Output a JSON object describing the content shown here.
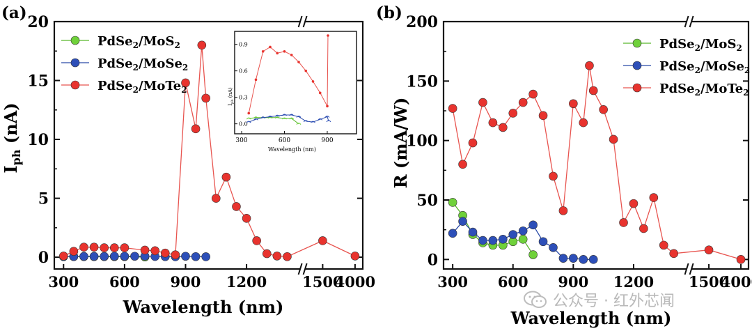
{
  "colors": {
    "green": "#6fd13a",
    "blue": "#2d4fb8",
    "red": "#e8332e",
    "red_line": "#e8544f",
    "green_line": "#59b82c",
    "blue_line": "#2a4aa8",
    "axis": "#111111"
  },
  "watermark": {
    "icon": "wechat-icon",
    "text": "公众号 · 红外芯闻"
  },
  "chart_data": [
    {
      "type": "scatter-line",
      "panel": "(a)",
      "title": "",
      "xlabel": "Wavelength (nm)",
      "ylabel": "Iph (nA)",
      "ylabel_main": "I",
      "ylabel_sub": "ph",
      "ylabel_unit": " (nA)",
      "ylim": [
        -1,
        20
      ],
      "xticks": [
        "300",
        "600",
        "900",
        "1200",
        "1500",
        "4000"
      ],
      "yticks": [
        "0",
        "5",
        "10",
        "15",
        "20"
      ],
      "legend": {
        "position": "top-left",
        "entries": [
          {
            "series": 0,
            "label": "PdSe2/MoS2",
            "parts": [
              [
                "PdSe",
                ""
              ],
              [
                "2",
                "sub"
              ],
              [
                "/MoS",
                ""
              ],
              [
                "2",
                "sub"
              ]
            ]
          },
          {
            "series": 1,
            "label": "PdSe2/MoSe2",
            "parts": [
              [
                "PdSe",
                ""
              ],
              [
                "2",
                "sub"
              ],
              [
                "/MoSe",
                ""
              ],
              [
                "2",
                "sub"
              ]
            ]
          },
          {
            "series": 2,
            "label": "PdSe2/MoTe2",
            "parts": [
              [
                "PdSe",
                ""
              ],
              [
                "2",
                "sub"
              ],
              [
                "/MoTe",
                ""
              ],
              [
                "2",
                "sub"
              ]
            ]
          }
        ]
      },
      "series": [
        {
          "name": "PdSe2/MoS2",
          "color": "green",
          "x": [
            300,
            350,
            400,
            450,
            500,
            550,
            600,
            700
          ],
          "y": [
            0.05,
            0.05,
            0.05,
            0.05,
            0.05,
            0.05,
            0.05,
            0.02
          ]
        },
        {
          "name": "PdSe2/MoSe2",
          "color": "blue",
          "x": [
            300,
            350,
            400,
            450,
            500,
            550,
            600,
            650,
            700,
            750,
            800,
            850,
            900,
            950,
            1000
          ],
          "y": [
            0.05,
            0.06,
            0.07,
            0.07,
            0.07,
            0.08,
            0.08,
            0.08,
            0.09,
            0.06,
            0.05,
            0.04,
            0.08,
            0.05,
            0.04
          ]
        },
        {
          "name": "PdSe2/MoTe2",
          "color": "red",
          "x": [
            300,
            350,
            400,
            450,
            500,
            550,
            600,
            700,
            750,
            800,
            850,
            900,
            950,
            980,
            1000,
            1050,
            1100,
            1150,
            1200,
            1250,
            1300,
            1350,
            1400,
            1550,
            4000
          ],
          "y": [
            0.1,
            0.5,
            0.85,
            0.85,
            0.8,
            0.8,
            0.8,
            0.6,
            0.55,
            0.35,
            0.2,
            14.8,
            10.9,
            18.0,
            13.5,
            5.0,
            6.8,
            4.3,
            3.3,
            1.4,
            0.3,
            0.1,
            0.05,
            1.4,
            0.1
          ]
        }
      ],
      "inset": {
        "xlabel": "Wavelength (nm)",
        "ylabel": "Iph (nA)",
        "ylabel_main": "I",
        "ylabel_sub": "ph",
        "ylabel_unit": " (nA)",
        "xlim": [
          300,
          1000
        ],
        "ylim": [
          -0.05,
          1.0
        ],
        "xticks": [
          "300",
          "600",
          "900"
        ],
        "yticks": [
          "0.0",
          "0.3",
          "0.6",
          "0.9"
        ],
        "series": [
          {
            "name": "PdSe2/MoS2",
            "color": "green",
            "x": [
              350,
              400,
              450,
              500,
              550,
              600,
              650,
              700
            ],
            "y": [
              0.06,
              0.07,
              0.07,
              0.07,
              0.07,
              0.06,
              0.06,
              0.0
            ]
          },
          {
            "name": "PdSe2/MoSe2",
            "color": "blue",
            "x": [
              350,
              400,
              450,
              500,
              550,
              600,
              650,
              700,
              750,
              800,
              850,
              900,
              950
            ],
            "y": [
              0.02,
              0.05,
              0.07,
              0.08,
              0.09,
              0.1,
              0.1,
              0.08,
              0.03,
              0.02,
              0.05,
              0.08,
              0.03
            ]
          },
          {
            "name": "PdSe2/MoTe2",
            "color": "red",
            "x": [
              350,
              400,
              450,
              500,
              550,
              600,
              650,
              700,
              750,
              800,
              850,
              900,
              905
            ],
            "y": [
              0.12,
              0.5,
              0.82,
              0.87,
              0.8,
              0.82,
              0.78,
              0.7,
              0.6,
              0.48,
              0.35,
              0.2,
              1.0
            ]
          }
        ]
      }
    },
    {
      "type": "scatter-line",
      "panel": "(b)",
      "title": "",
      "xlabel": "Wavelength (nm)",
      "ylabel": "R (mA/W)",
      "ylim": [
        -8,
        200
      ],
      "xticks": [
        "300",
        "600",
        "900",
        "1200",
        "1500",
        "4000"
      ],
      "yticks": [
        "0",
        "50",
        "100",
        "150",
        "200"
      ],
      "legend": {
        "position": "top-right",
        "entries": [
          {
            "series": 0,
            "label": "PdSe2/MoS2",
            "parts": [
              [
                "PdSe",
                ""
              ],
              [
                "2",
                "sub"
              ],
              [
                "/MoS",
                ""
              ],
              [
                "2",
                "sub"
              ]
            ]
          },
          {
            "series": 1,
            "label": "PdSe2/MoSe2",
            "parts": [
              [
                "PdSe",
                ""
              ],
              [
                "2",
                "sub"
              ],
              [
                "/MoSe",
                ""
              ],
              [
                "2",
                "sub"
              ]
            ]
          },
          {
            "series": 2,
            "label": "PdSe2/MoTe2",
            "parts": [
              [
                "PdSe",
                ""
              ],
              [
                "2",
                "sub"
              ],
              [
                "/MoTe",
                ""
              ],
              [
                "2",
                "sub"
              ]
            ]
          }
        ]
      },
      "series": [
        {
          "name": "PdSe2/MoS2",
          "color": "green",
          "x": [
            300,
            350,
            400,
            450,
            500,
            550,
            600,
            650,
            700
          ],
          "y": [
            48,
            37,
            21,
            14,
            12,
            12,
            15,
            17,
            4
          ]
        },
        {
          "name": "PdSe2/MoSe2",
          "color": "blue",
          "x": [
            300,
            350,
            400,
            450,
            500,
            550,
            600,
            650,
            700,
            750,
            800,
            850,
            900,
            950,
            1000
          ],
          "y": [
            22,
            32,
            23,
            16,
            16,
            17,
            21,
            24,
            29,
            15,
            10,
            1,
            1,
            0,
            0
          ]
        },
        {
          "name": "PdSe2/MoTe2",
          "color": "red",
          "x": [
            300,
            350,
            400,
            450,
            500,
            550,
            600,
            650,
            700,
            750,
            800,
            850,
            900,
            950,
            980,
            1000,
            1050,
            1100,
            1150,
            1200,
            1250,
            1300,
            1350,
            1400,
            1550,
            4000
          ],
          "y": [
            127,
            80,
            98,
            132,
            115,
            111,
            123,
            132,
            139,
            121,
            70,
            41,
            131,
            115,
            163,
            142,
            126,
            101,
            31,
            47,
            26,
            52,
            12,
            5,
            8,
            0
          ]
        }
      ]
    }
  ]
}
